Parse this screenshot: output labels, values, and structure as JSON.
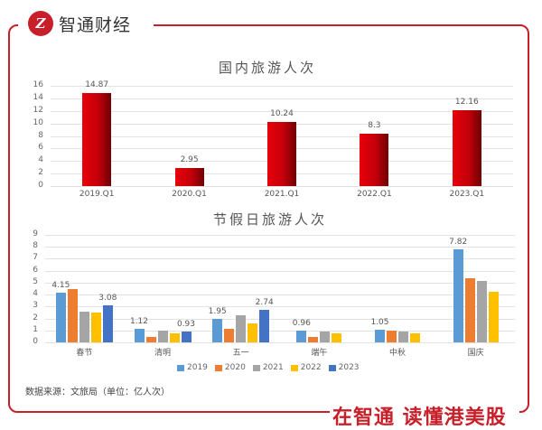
{
  "brand": {
    "logo_letter": "Z",
    "name": "智通财经",
    "slogan": "在智通 读懂港美股",
    "accent_color": "#c8202a"
  },
  "source_note": "数据来源：文旅局（单位：亿人次）",
  "chart_data": [
    {
      "type": "bar",
      "title": "国内旅游人次",
      "categories": [
        "2019.Q1",
        "2020.Q1",
        "2021.Q1",
        "2022.Q1",
        "2023.Q1"
      ],
      "values": [
        14.87,
        2.95,
        10.24,
        8.3,
        12.16
      ],
      "data_labels": [
        "14.87",
        "2.95",
        "10.24",
        "8.3",
        "12.16"
      ],
      "xlabel": "",
      "ylabel": "",
      "ylim": [
        0,
        16
      ],
      "yticks": [
        0,
        2,
        4,
        6,
        8,
        10,
        12,
        14,
        16
      ],
      "grid": true,
      "bar_color": "#d0000a"
    },
    {
      "type": "bar",
      "title": "节假日旅游人次",
      "categories": [
        "春节",
        "清明",
        "五一",
        "端午",
        "中秋",
        "国庆"
      ],
      "series": [
        {
          "name": "2019",
          "color": "#5b9bd5",
          "values": [
            4.15,
            1.12,
            1.95,
            0.96,
            1.05,
            7.82
          ]
        },
        {
          "name": "2020",
          "color": "#ed7d31",
          "values": [
            4.5,
            0.43,
            1.15,
            0.49,
            1.0,
            5.4
          ]
        },
        {
          "name": "2021",
          "color": "#a5a5a5",
          "values": [
            2.56,
            1.02,
            2.3,
            0.89,
            0.88,
            5.15
          ]
        },
        {
          "name": "2022",
          "color": "#ffc000",
          "values": [
            2.51,
            0.75,
            1.6,
            0.79,
            0.73,
            4.22
          ]
        },
        {
          "name": "2023",
          "color": "#4472c4",
          "values": [
            3.08,
            0.93,
            2.74,
            null,
            null,
            null
          ]
        }
      ],
      "data_labels": [
        {
          "category": "春节",
          "series": "2019",
          "text": "4.15"
        },
        {
          "category": "春节",
          "series": "2023",
          "text": "3.08"
        },
        {
          "category": "清明",
          "series": "2019",
          "text": "1.12"
        },
        {
          "category": "清明",
          "series": "2023",
          "text": "0.93"
        },
        {
          "category": "五一",
          "series": "2019",
          "text": "1.95"
        },
        {
          "category": "五一",
          "series": "2023",
          "text": "2.74"
        },
        {
          "category": "端午",
          "series": "2019",
          "text": "0.96"
        },
        {
          "category": "中秋",
          "series": "2019",
          "text": "1.05"
        },
        {
          "category": "国庆",
          "series": "2019",
          "text": "7.82"
        }
      ],
      "xlabel": "",
      "ylabel": "",
      "ylim": [
        0,
        9
      ],
      "yticks": [
        0,
        1,
        2,
        3,
        4,
        5,
        6,
        7,
        8,
        9
      ],
      "grid": true,
      "legend_position": "bottom"
    }
  ]
}
